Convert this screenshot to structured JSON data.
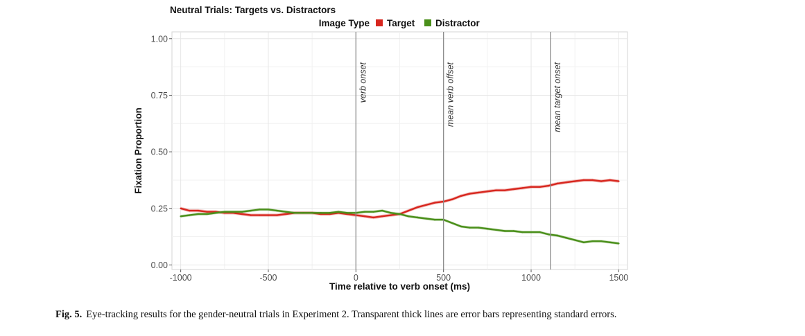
{
  "chart_data": {
    "type": "line",
    "title": "Neutral Trials: Targets vs. Distractors",
    "legend": {
      "title": "Image Type",
      "placement": "top",
      "entries": [
        "Target",
        "Distractor"
      ]
    },
    "xlabel": "Time relative to verb onset (ms)",
    "ylabel": "Fixation Proportion",
    "xlim": [
      -1050,
      1550
    ],
    "ylim": [
      -0.02,
      1.03
    ],
    "x_ticks": [
      -1000,
      -500,
      0,
      500,
      1000,
      1500
    ],
    "x_tick_labels": [
      "-1000",
      "-500",
      "0",
      "500",
      "1000",
      "1500"
    ],
    "y_ticks": [
      0,
      0.25,
      0.5,
      0.75,
      1.0
    ],
    "y_tick_labels": [
      "0.00",
      "0.25",
      "0.50",
      "0.75",
      "1.00"
    ],
    "grid": true,
    "x": [
      -1000,
      -950,
      -900,
      -850,
      -800,
      -750,
      -700,
      -650,
      -600,
      -550,
      -500,
      -450,
      -400,
      -350,
      -300,
      -250,
      -200,
      -150,
      -100,
      -50,
      0,
      50,
      100,
      150,
      200,
      250,
      300,
      350,
      400,
      450,
      500,
      550,
      600,
      650,
      700,
      750,
      800,
      850,
      900,
      950,
      1000,
      1050,
      1100,
      1150,
      1200,
      1250,
      1300,
      1350,
      1400,
      1450,
      1500
    ],
    "series": [
      {
        "name": "Target",
        "color": "#d7261e",
        "error_band": 0.007,
        "values": [
          0.25,
          0.24,
          0.24,
          0.235,
          0.235,
          0.23,
          0.23,
          0.225,
          0.22,
          0.22,
          0.22,
          0.22,
          0.225,
          0.23,
          0.23,
          0.23,
          0.225,
          0.225,
          0.23,
          0.225,
          0.22,
          0.215,
          0.21,
          0.215,
          0.22,
          0.225,
          0.24,
          0.255,
          0.265,
          0.275,
          0.28,
          0.29,
          0.305,
          0.315,
          0.32,
          0.325,
          0.33,
          0.33,
          0.335,
          0.34,
          0.345,
          0.345,
          0.35,
          0.36,
          0.365,
          0.37,
          0.375,
          0.375,
          0.37,
          0.375,
          0.37
        ]
      },
      {
        "name": "Distractor",
        "color": "#4a8f1a",
        "error_band": 0.006,
        "values": [
          0.215,
          0.22,
          0.225,
          0.225,
          0.23,
          0.235,
          0.235,
          0.235,
          0.24,
          0.245,
          0.245,
          0.24,
          0.235,
          0.23,
          0.23,
          0.23,
          0.23,
          0.23,
          0.235,
          0.23,
          0.23,
          0.235,
          0.235,
          0.24,
          0.23,
          0.225,
          0.215,
          0.21,
          0.205,
          0.2,
          0.2,
          0.185,
          0.17,
          0.165,
          0.165,
          0.16,
          0.155,
          0.15,
          0.15,
          0.145,
          0.145,
          0.145,
          0.135,
          0.13,
          0.12,
          0.11,
          0.1,
          0.105,
          0.105,
          0.1,
          0.095
        ]
      }
    ],
    "annotations": [
      {
        "x": 0,
        "label": "verb onset"
      },
      {
        "x": 500,
        "label": "mean verb offset"
      },
      {
        "x": 1110,
        "label": "mean target onset"
      }
    ]
  },
  "caption": {
    "label": "Fig. 5.",
    "text": "Eye-tracking results for the gender-neutral trials in Experiment 2. Transparent thick lines are error bars representing standard errors."
  }
}
